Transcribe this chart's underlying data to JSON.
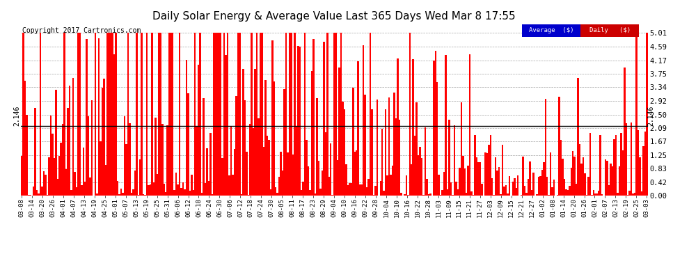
{
  "title": "Daily Solar Energy & Average Value Last 365 Days Wed Mar 8 17:55",
  "copyright": "Copyright 2017 Cartronics.com",
  "average_value": 2.146,
  "average_label": "2.146",
  "bar_color": "#ff0000",
  "avg_line_color": "#000000",
  "background_color": "#ffffff",
  "yticks": [
    0.0,
    0.42,
    0.83,
    1.25,
    1.67,
    2.09,
    2.5,
    2.92,
    3.34,
    3.75,
    4.17,
    4.59,
    5.01
  ],
  "ylim": [
    0,
    5.3
  ],
  "legend_avg_color": "#0000cc",
  "legend_daily_color": "#cc0000",
  "legend_avg_text": "Average  ($)",
  "legend_daily_text": "Daily   ($)",
  "xtick_labels": [
    "03-08",
    "03-14",
    "03-20",
    "03-26",
    "04-01",
    "04-07",
    "04-13",
    "04-19",
    "04-25",
    "05-01",
    "05-07",
    "05-13",
    "05-19",
    "05-25",
    "05-31",
    "06-06",
    "06-12",
    "06-18",
    "06-24",
    "06-30",
    "07-06",
    "07-12",
    "07-18",
    "07-24",
    "07-30",
    "08-05",
    "08-11",
    "08-17",
    "08-23",
    "08-29",
    "09-04",
    "09-10",
    "09-16",
    "09-22",
    "09-28",
    "10-04",
    "10-10",
    "10-16",
    "10-22",
    "10-28",
    "11-03",
    "11-09",
    "11-15",
    "11-21",
    "11-27",
    "12-03",
    "12-09",
    "12-15",
    "12-21",
    "12-27",
    "01-02",
    "01-08",
    "01-14",
    "01-20",
    "01-26",
    "02-01",
    "02-07",
    "02-13",
    "02-19",
    "02-25",
    "03-03"
  ],
  "seed": 42,
  "num_bars": 365
}
